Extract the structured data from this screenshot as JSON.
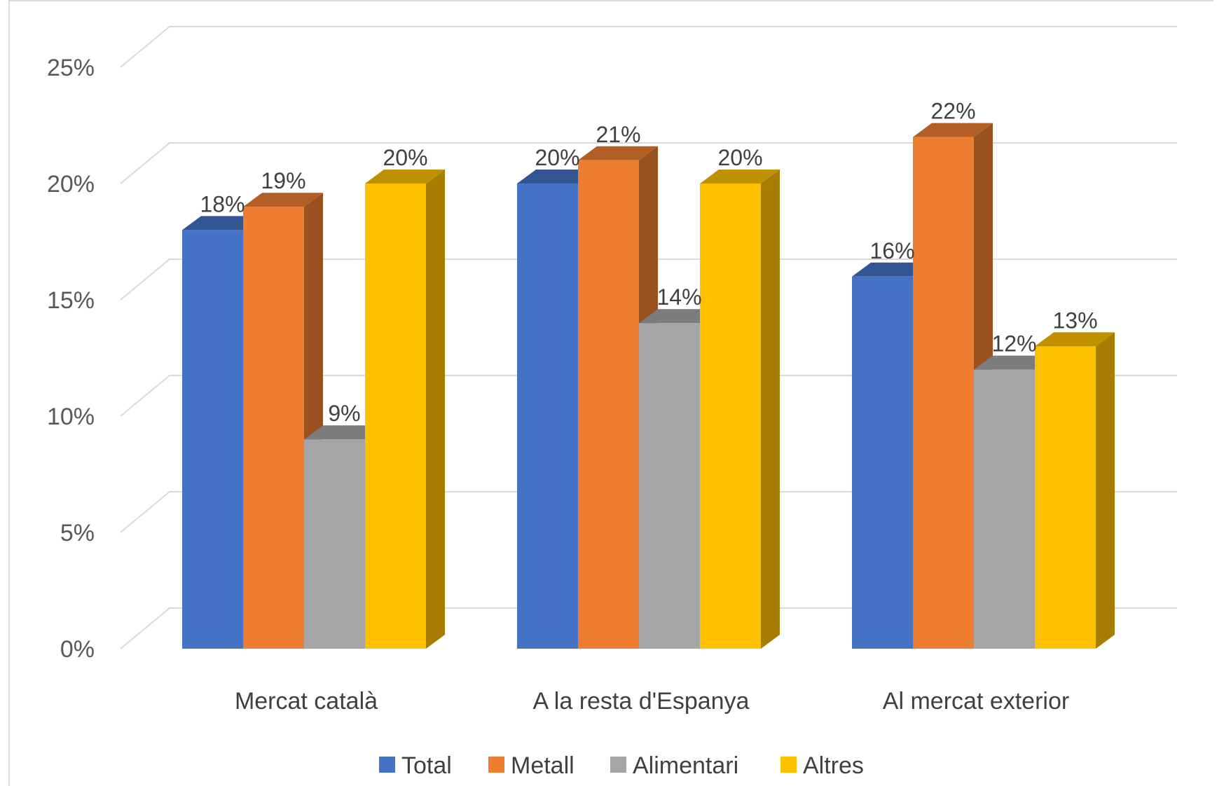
{
  "chart_data": {
    "type": "bar",
    "categories": [
      "Mercat català",
      "A la resta d'Espanya",
      "Al mercat exterior"
    ],
    "series": [
      {
        "name": "Total",
        "color": "#4472C4",
        "values": [
          18,
          20,
          16
        ],
        "labels": [
          "18%",
          "20%",
          "16%"
        ]
      },
      {
        "name": "Metall",
        "color": "#ED7D31",
        "values": [
          19,
          21,
          22
        ],
        "labels": [
          "19%",
          "21%",
          "22%"
        ]
      },
      {
        "name": "Alimentari",
        "color": "#A5A5A5",
        "values": [
          9,
          14,
          12
        ],
        "labels": [
          "9%",
          "14%",
          "12%"
        ]
      },
      {
        "name": "Altres",
        "color": "#FFC000",
        "values": [
          20,
          20,
          13
        ],
        "labels": [
          "20%",
          "20%",
          "13%"
        ]
      }
    ],
    "y_ticks": [
      "0%",
      "5%",
      "10%",
      "15%",
      "20%",
      "25%"
    ],
    "ylim": [
      0,
      25
    ],
    "grid": true,
    "legend_position": "bottom",
    "style": "3d-column"
  }
}
